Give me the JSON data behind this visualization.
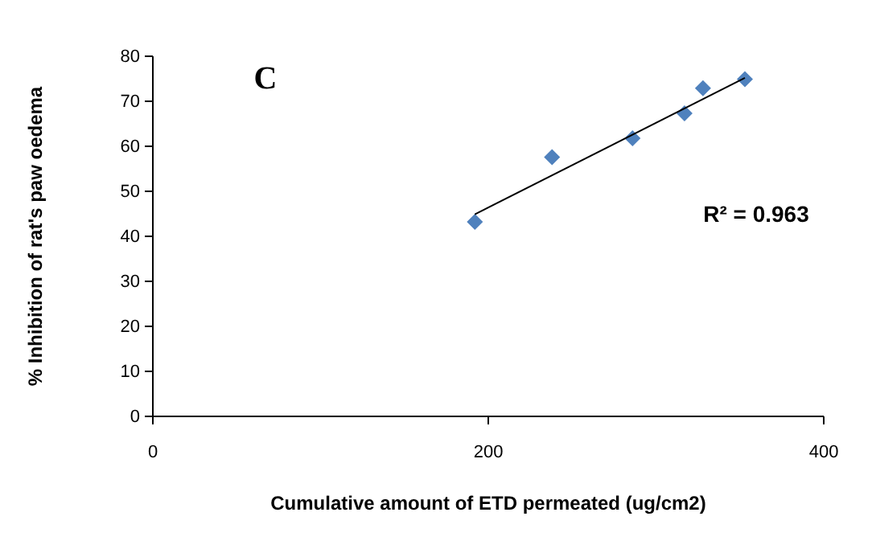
{
  "chart_data": {
    "type": "scatter",
    "xlabel": "Cumulative amount of ETD permeated (ug/cm2)",
    "ylabel": "% Inhibition of rat's paw oedema",
    "xlim": [
      0,
      400
    ],
    "xticks": [
      0,
      200,
      400
    ],
    "ylim": [
      0,
      80
    ],
    "yticks": [
      0,
      10,
      20,
      30,
      40,
      50,
      60,
      70,
      80
    ],
    "grid": false,
    "series": [
      {
        "color": "#4f81bd",
        "marker": "diamond",
        "x": [
          192,
          238,
          286,
          317,
          328,
          353
        ],
        "values": [
          43.2,
          57.6,
          61.8,
          67.3,
          72.9,
          74.9
        ]
      },
      {
        "type": "line",
        "color": "#000000",
        "marker": "none",
        "line_style": "solid",
        "x": [
          192,
          353
        ],
        "values": [
          44.9,
          75.2
        ]
      }
    ],
    "annotations": [
      "C",
      "R² = 0.963"
    ]
  }
}
